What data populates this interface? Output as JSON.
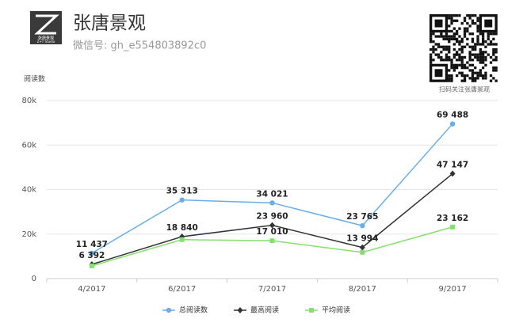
{
  "header": {
    "title": "张唐景观",
    "subtitle": "微信号: gh_e554803892c0",
    "logo_text": "张唐景观",
    "logo_subtext": "Z+T Studio",
    "qr_caption": "扫码关注张唐景观"
  },
  "chart_data": {
    "type": "line",
    "y_label": "阅读数",
    "categories": [
      "4/2017",
      "6/2017",
      "7/2017",
      "8/2017",
      "9/2017"
    ],
    "series": [
      {
        "name": "总阅读数",
        "color": "#6aaee8",
        "marker": "circle",
        "values": [
          11437,
          35313,
          34021,
          23765,
          69488
        ],
        "value_labels": [
          "11 437",
          "35 313",
          "34 021",
          "23 765",
          "69 488"
        ]
      },
      {
        "name": "最高阅读",
        "color": "#333333",
        "marker": "diamond",
        "values": [
          6392,
          18840,
          23960,
          13994,
          47147
        ],
        "value_labels": [
          "6 392",
          "18 840",
          "23 960",
          "13 994",
          "47 147"
        ]
      },
      {
        "name": "平均阅读",
        "color": "#86e06e",
        "marker": "square",
        "values": [
          5700,
          17500,
          17010,
          11800,
          23162
        ],
        "value_labels": [
          null,
          null,
          "17 010",
          null,
          "23 162"
        ]
      }
    ],
    "ylim": [
      0,
      80000
    ],
    "yticks": [
      0,
      {
        "value": 20000,
        "label": "20k"
      },
      {
        "value": 40000,
        "label": "40k"
      },
      {
        "value": 60000,
        "label": "60k"
      },
      {
        "value": 80000,
        "label": "80k"
      }
    ],
    "grid": true,
    "legend": "bottom"
  }
}
